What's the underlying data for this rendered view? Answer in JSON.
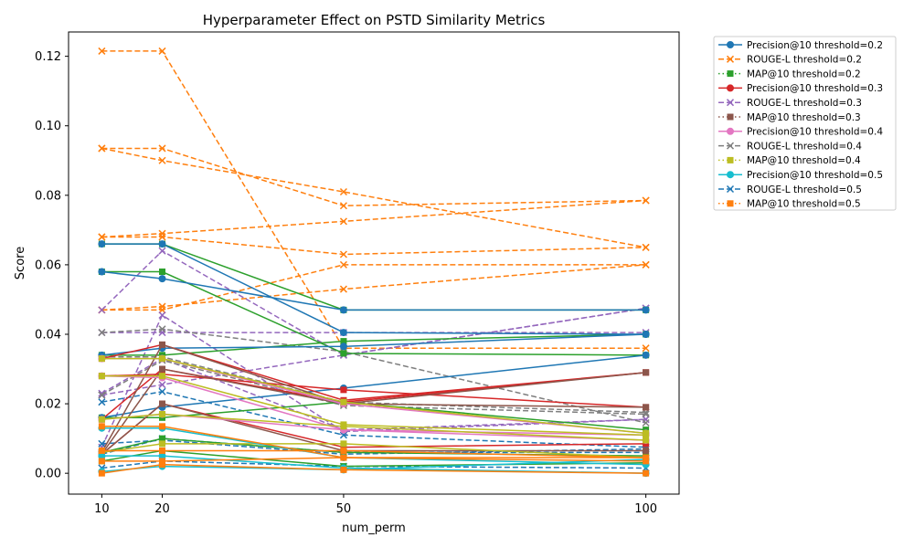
{
  "chart_data": {
    "type": "line",
    "title": "Hyperparameter Effect on PSTD Similarity Metrics",
    "xlabel": "num_perm",
    "ylabel": "Score",
    "x": [
      10,
      20,
      50,
      100
    ],
    "xticks": [
      "10",
      "20",
      "50",
      "100"
    ],
    "xlim": [
      4.5,
      105.5
    ],
    "ylim": [
      -0.006,
      0.127
    ],
    "yticks": [
      0.0,
      0.02,
      0.04,
      0.06,
      0.08,
      0.1,
      0.12
    ],
    "ytick_labels": [
      "0.00",
      "0.02",
      "0.04",
      "0.06",
      "0.08",
      "0.10",
      "0.12"
    ],
    "grid": false,
    "legend_position": "outside-upper-right",
    "legend": [
      {
        "label": "Precision@10 threshold=0.2",
        "color": "#1f77b4",
        "marker": "circle",
        "dash": "solid"
      },
      {
        "label": "ROUGE-L threshold=0.2",
        "color": "#ff7f0e",
        "marker": "x",
        "dash": "dashed"
      },
      {
        "label": "MAP@10 threshold=0.2",
        "color": "#2ca02c",
        "marker": "square",
        "dash": "dotted"
      },
      {
        "label": "Precision@10 threshold=0.3",
        "color": "#d62728",
        "marker": "circle",
        "dash": "solid"
      },
      {
        "label": "ROUGE-L threshold=0.3",
        "color": "#9467bd",
        "marker": "x",
        "dash": "dashed"
      },
      {
        "label": "MAP@10 threshold=0.3",
        "color": "#8c564b",
        "marker": "square",
        "dash": "dotted"
      },
      {
        "label": "Precision@10 threshold=0.4",
        "color": "#e377c2",
        "marker": "circle",
        "dash": "solid"
      },
      {
        "label": "ROUGE-L threshold=0.4",
        "color": "#7f7f7f",
        "marker": "x",
        "dash": "dashed"
      },
      {
        "label": "MAP@10 threshold=0.4",
        "color": "#bcbd22",
        "marker": "square",
        "dash": "dotted"
      },
      {
        "label": "Precision@10 threshold=0.5",
        "color": "#17becf",
        "marker": "circle",
        "dash": "solid"
      },
      {
        "label": "ROUGE-L threshold=0.5",
        "color": "#1f77b4",
        "marker": "x",
        "dash": "dashed"
      },
      {
        "label": "MAP@10 threshold=0.5",
        "color": "#ff7f0e",
        "marker": "square",
        "dash": "dotted"
      }
    ],
    "series": [
      {
        "color": "#ff7f0e",
        "marker": "x",
        "dash": "dashed",
        "values": [
          0.1215,
          0.1215,
          0.036,
          0.036
        ]
      },
      {
        "color": "#ff7f0e",
        "marker": "x",
        "dash": "dashed",
        "values": [
          0.0935,
          0.0935,
          0.077,
          0.0785
        ]
      },
      {
        "color": "#ff7f0e",
        "marker": "x",
        "dash": "dashed",
        "values": [
          0.0935,
          0.09,
          0.081,
          0.065
        ]
      },
      {
        "color": "#ff7f0e",
        "marker": "x",
        "dash": "dashed",
        "values": [
          0.068,
          0.069,
          0.0725,
          0.0785
        ]
      },
      {
        "color": "#ff7f0e",
        "marker": "x",
        "dash": "dashed",
        "values": [
          0.068,
          0.068,
          0.063,
          0.065
        ]
      },
      {
        "color": "#ff7f0e",
        "marker": "x",
        "dash": "dashed",
        "values": [
          0.047,
          0.048,
          0.053,
          0.06
        ]
      },
      {
        "color": "#ff7f0e",
        "marker": "x",
        "dash": "dashed",
        "values": [
          0.047,
          0.047,
          0.06,
          0.06
        ]
      },
      {
        "color": "#9467bd",
        "marker": "x",
        "dash": "dashed",
        "values": [
          0.047,
          0.064,
          0.034,
          0.0475
        ]
      },
      {
        "color": "#9467bd",
        "marker": "x",
        "dash": "dashed",
        "values": [
          0.0405,
          0.0405,
          0.0405,
          0.0405
        ]
      },
      {
        "color": "#9467bd",
        "marker": "x",
        "dash": "dashed",
        "values": [
          0.0225,
          0.0255,
          0.034,
          0.0475
        ]
      },
      {
        "color": "#9467bd",
        "marker": "x",
        "dash": "dashed",
        "values": [
          0.0075,
          0.0455,
          0.012,
          0.0155
        ]
      },
      {
        "color": "#9467bd",
        "marker": "x",
        "dash": "dashed",
        "values": [
          0.023,
          0.033,
          0.0125,
          0.0155
        ]
      },
      {
        "color": "#7f7f7f",
        "marker": "x",
        "dash": "dashed",
        "values": [
          0.0405,
          0.0415,
          0.035,
          0.0145
        ]
      },
      {
        "color": "#7f7f7f",
        "marker": "x",
        "dash": "dashed",
        "values": [
          0.0335,
          0.0335,
          0.0205,
          0.0175
        ]
      },
      {
        "color": "#7f7f7f",
        "marker": "x",
        "dash": "dashed",
        "values": [
          0.0225,
          0.0325,
          0.0195,
          0.017
        ]
      },
      {
        "color": "#1f77b4",
        "marker": "x",
        "dash": "dashed",
        "values": [
          0.0205,
          0.0235,
          0.011,
          0.0075
        ]
      },
      {
        "color": "#1f77b4",
        "marker": "x",
        "dash": "dashed",
        "values": [
          0.0085,
          0.0095,
          0.0055,
          0.007
        ]
      },
      {
        "color": "#1f77b4",
        "marker": "x",
        "dash": "dashed",
        "values": [
          0.0055,
          0.01,
          0.006,
          0.006
        ]
      },
      {
        "color": "#1f77b4",
        "marker": "x",
        "dash": "dashed",
        "values": [
          0.0015,
          0.0035,
          0.002,
          0.0015
        ]
      },
      {
        "color": "#2ca02c",
        "marker": "square",
        "dash": "solid",
        "values": [
          0.066,
          0.066,
          0.047,
          0.047
        ]
      },
      {
        "color": "#2ca02c",
        "marker": "square",
        "dash": "solid",
        "values": [
          0.058,
          0.058,
          0.0345,
          0.034
        ]
      },
      {
        "color": "#2ca02c",
        "marker": "square",
        "dash": "solid",
        "values": [
          0.034,
          0.034,
          0.038,
          0.04
        ]
      },
      {
        "color": "#2ca02c",
        "marker": "square",
        "dash": "solid",
        "values": [
          0.016,
          0.016,
          0.0205,
          0.0125
        ]
      },
      {
        "color": "#2ca02c",
        "marker": "square",
        "dash": "solid",
        "values": [
          0.006,
          0.01,
          0.006,
          0.005
        ]
      },
      {
        "color": "#2ca02c",
        "marker": "square",
        "dash": "solid",
        "values": [
          0.0035,
          0.0065,
          0.002,
          0.003
        ]
      },
      {
        "color": "#1f77b4",
        "marker": "circle",
        "dash": "solid",
        "values": [
          0.066,
          0.066,
          0.0405,
          0.04
        ]
      },
      {
        "color": "#1f77b4",
        "marker": "circle",
        "dash": "solid",
        "values": [
          0.058,
          0.056,
          0.047,
          0.047
        ]
      },
      {
        "color": "#1f77b4",
        "marker": "circle",
        "dash": "solid",
        "values": [
          0.034,
          0.036,
          0.0365,
          0.04
        ]
      },
      {
        "color": "#1f77b4",
        "marker": "circle",
        "dash": "solid",
        "values": [
          0.016,
          0.019,
          0.0245,
          0.034
        ]
      },
      {
        "color": "#d62728",
        "marker": "square",
        "dash": "solid",
        "values": [
          0.033,
          0.037,
          0.021,
          0.029
        ]
      },
      {
        "color": "#d62728",
        "marker": "square",
        "dash": "solid",
        "values": [
          0.0155,
          0.03,
          0.0205,
          0.029
        ]
      },
      {
        "color": "#d62728",
        "marker": "square",
        "dash": "solid",
        "values": [
          0.028,
          0.0285,
          0.024,
          0.019
        ]
      },
      {
        "color": "#d62728",
        "marker": "square",
        "dash": "solid",
        "values": [
          0.0055,
          0.02,
          0.0075,
          0.0085
        ]
      },
      {
        "color": "#8c564b",
        "marker": "square",
        "dash": "solid",
        "values": [
          0.006,
          0.037,
          0.02,
          0.029
        ]
      },
      {
        "color": "#8c564b",
        "marker": "square",
        "dash": "solid",
        "values": [
          0.0055,
          0.03,
          0.02,
          0.019
        ]
      },
      {
        "color": "#8c564b",
        "marker": "square",
        "dash": "solid",
        "values": [
          0.0055,
          0.02,
          0.0065,
          0.0065
        ]
      },
      {
        "color": "#e377c2",
        "marker": "circle",
        "dash": "solid",
        "values": [
          0.033,
          0.033,
          0.02,
          0.0115
        ]
      },
      {
        "color": "#e377c2",
        "marker": "circle",
        "dash": "solid",
        "values": [
          0.028,
          0.0275,
          0.0125,
          0.011
        ]
      },
      {
        "color": "#e377c2",
        "marker": "circle",
        "dash": "solid",
        "values": [
          0.0155,
          0.017,
          0.0125,
          0.0095
        ]
      },
      {
        "color": "#bcbd22",
        "marker": "square",
        "dash": "solid",
        "values": [
          0.033,
          0.033,
          0.0205,
          0.0115
        ]
      },
      {
        "color": "#bcbd22",
        "marker": "square",
        "dash": "solid",
        "values": [
          0.028,
          0.028,
          0.014,
          0.011
        ]
      },
      {
        "color": "#bcbd22",
        "marker": "square",
        "dash": "solid",
        "values": [
          0.0155,
          0.017,
          0.0135,
          0.0095
        ]
      },
      {
        "color": "#bcbd22",
        "marker": "square",
        "dash": "solid",
        "values": [
          0.006,
          0.0085,
          0.0085,
          0.0045
        ]
      },
      {
        "color": "#17becf",
        "marker": "circle",
        "dash": "solid",
        "values": [
          0.013,
          0.013,
          0.0045,
          0.0025
        ]
      },
      {
        "color": "#17becf",
        "marker": "circle",
        "dash": "solid",
        "values": [
          0.005,
          0.005,
          0.0015,
          0.0
        ]
      },
      {
        "color": "#17becf",
        "marker": "circle",
        "dash": "solid",
        "values": [
          0.0005,
          0.002,
          0.001,
          0.004
        ]
      },
      {
        "color": "#ff7f0e",
        "marker": "square",
        "dash": "solid",
        "values": [
          0.0135,
          0.0135,
          0.0045,
          0.0045
        ]
      },
      {
        "color": "#ff7f0e",
        "marker": "square",
        "dash": "solid",
        "values": [
          0.0065,
          0.0065,
          0.0065,
          0.0045
        ]
      },
      {
        "color": "#ff7f0e",
        "marker": "square",
        "dash": "solid",
        "values": [
          0.0035,
          0.0035,
          0.0045,
          0.0035
        ]
      },
      {
        "color": "#ff7f0e",
        "marker": "square",
        "dash": "solid",
        "values": [
          0.0,
          0.0025,
          0.001,
          0.0
        ]
      }
    ]
  }
}
